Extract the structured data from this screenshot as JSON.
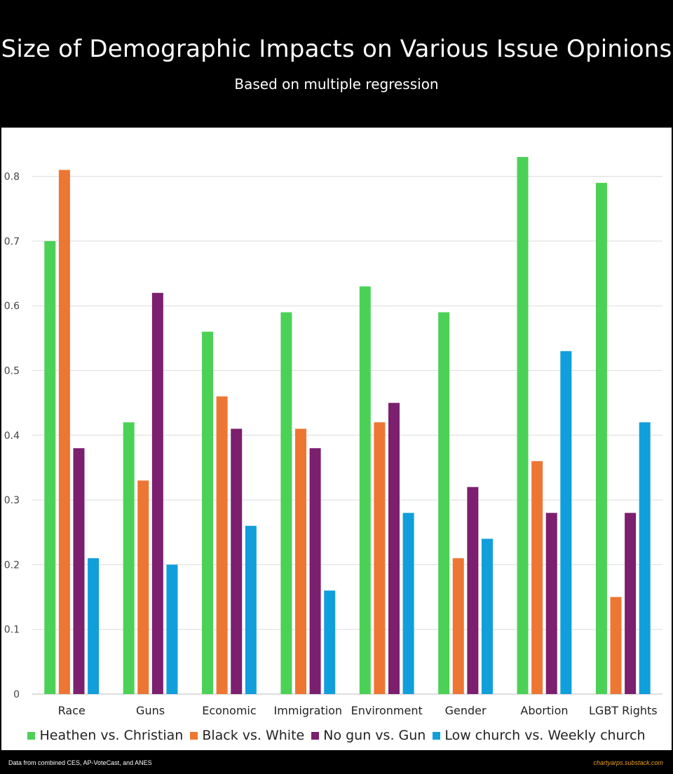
{
  "title": "Size of Demographic Impacts on Various Issue Opinions",
  "subtitle": "Based on multiple regression",
  "footer": {
    "source": "Data from combined CES, AP-VoteCast, and ANES",
    "credit": "chartyarps.substack.com"
  },
  "chart_data": {
    "type": "bar",
    "title": "Size of Demographic Impacts on Various Issue Opinions",
    "subtitle": "Based on multiple regression",
    "xlabel": "",
    "ylabel": "",
    "categories": [
      "Race",
      "Guns",
      "Economic",
      "Immigration",
      "Environment",
      "Gender",
      "Abortion",
      "LGBT Rights"
    ],
    "ylim": [
      0,
      0.9
    ],
    "yticks": [
      0,
      0.1,
      0.2,
      0.3,
      0.4,
      0.5,
      0.6,
      0.7,
      0.8
    ],
    "ytick_labels": [
      "0",
      "0.1",
      "0.2",
      "0.3",
      "0.4",
      "0.5",
      "0.6",
      "0.7",
      "0.8"
    ],
    "grid": true,
    "legend_position": "bottom",
    "series": [
      {
        "name": "Heathen vs. Christian",
        "color": "#4cd157",
        "values": [
          0.7,
          0.42,
          0.56,
          0.59,
          0.63,
          0.59,
          0.83,
          0.79
        ]
      },
      {
        "name": "Black vs. White",
        "color": "#ed7633",
        "values": [
          0.81,
          0.33,
          0.46,
          0.41,
          0.42,
          0.21,
          0.36,
          0.15
        ]
      },
      {
        "name": "No gun vs. Gun",
        "color": "#7b1f6e",
        "values": [
          0.38,
          0.62,
          0.41,
          0.38,
          0.45,
          0.32,
          0.28,
          0.28
        ]
      },
      {
        "name": "Low church vs. Weekly church",
        "color": "#119fdb",
        "values": [
          0.21,
          0.2,
          0.26,
          0.16,
          0.28,
          0.24,
          0.53,
          0.42
        ]
      }
    ]
  }
}
